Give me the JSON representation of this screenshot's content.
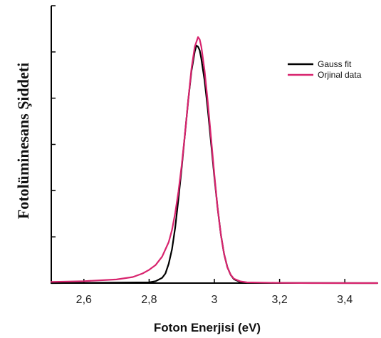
{
  "chart_data": {
    "type": "line",
    "xlabel": "Foton Enerjisi (eV)",
    "ylabel": "Fotolüminesans Şiddeti",
    "xlim": [
      2.5,
      3.5
    ],
    "ylim": [
      0,
      1.15
    ],
    "x_ticks": [
      2.6,
      2.8,
      3.0,
      3.2,
      3.4
    ],
    "x_tick_labels": [
      "2,6",
      "2,8",
      "3",
      "3,2",
      "3,4"
    ],
    "y_tick_count": 6,
    "y_tick_labels_visible": false,
    "grid": false,
    "legend_position": "top-right",
    "series": [
      {
        "name": "Gauss fit",
        "color": "#000000",
        "x": [
          2.5,
          2.8,
          2.82,
          2.84,
          2.85,
          2.86,
          2.87,
          2.88,
          2.89,
          2.9,
          2.91,
          2.92,
          2.93,
          2.94,
          2.945,
          2.95,
          2.955,
          2.96,
          2.97,
          2.98,
          2.99,
          3.0,
          3.01,
          3.02,
          3.03,
          3.04,
          3.05,
          3.06,
          3.08,
          3.1,
          3.5
        ],
        "y": [
          0.0,
          0.003,
          0.008,
          0.022,
          0.04,
          0.08,
          0.14,
          0.23,
          0.35,
          0.48,
          0.62,
          0.76,
          0.88,
          0.96,
          0.985,
          0.98,
          0.965,
          0.93,
          0.84,
          0.72,
          0.58,
          0.44,
          0.31,
          0.2,
          0.12,
          0.066,
          0.034,
          0.016,
          0.004,
          0.001,
          0.0
        ]
      },
      {
        "name": "Orjinal data",
        "color": "#d8246e",
        "x": [
          2.5,
          2.6,
          2.7,
          2.75,
          2.78,
          2.8,
          2.82,
          2.84,
          2.86,
          2.87,
          2.88,
          2.89,
          2.9,
          2.91,
          2.92,
          2.93,
          2.94,
          2.95,
          2.955,
          2.96,
          2.97,
          2.98,
          2.99,
          3.0,
          3.01,
          3.02,
          3.03,
          3.04,
          3.05,
          3.06,
          3.08,
          3.1,
          3.2,
          3.3,
          3.4,
          3.5
        ],
        "y": [
          0.005,
          0.008,
          0.015,
          0.025,
          0.04,
          0.055,
          0.075,
          0.11,
          0.17,
          0.22,
          0.29,
          0.38,
          0.49,
          0.62,
          0.76,
          0.89,
          0.98,
          1.02,
          1.01,
          0.98,
          0.88,
          0.75,
          0.6,
          0.45,
          0.31,
          0.2,
          0.12,
          0.065,
          0.035,
          0.018,
          0.007,
          0.003,
          0.001,
          0.0,
          0.0,
          0.0
        ]
      }
    ]
  }
}
